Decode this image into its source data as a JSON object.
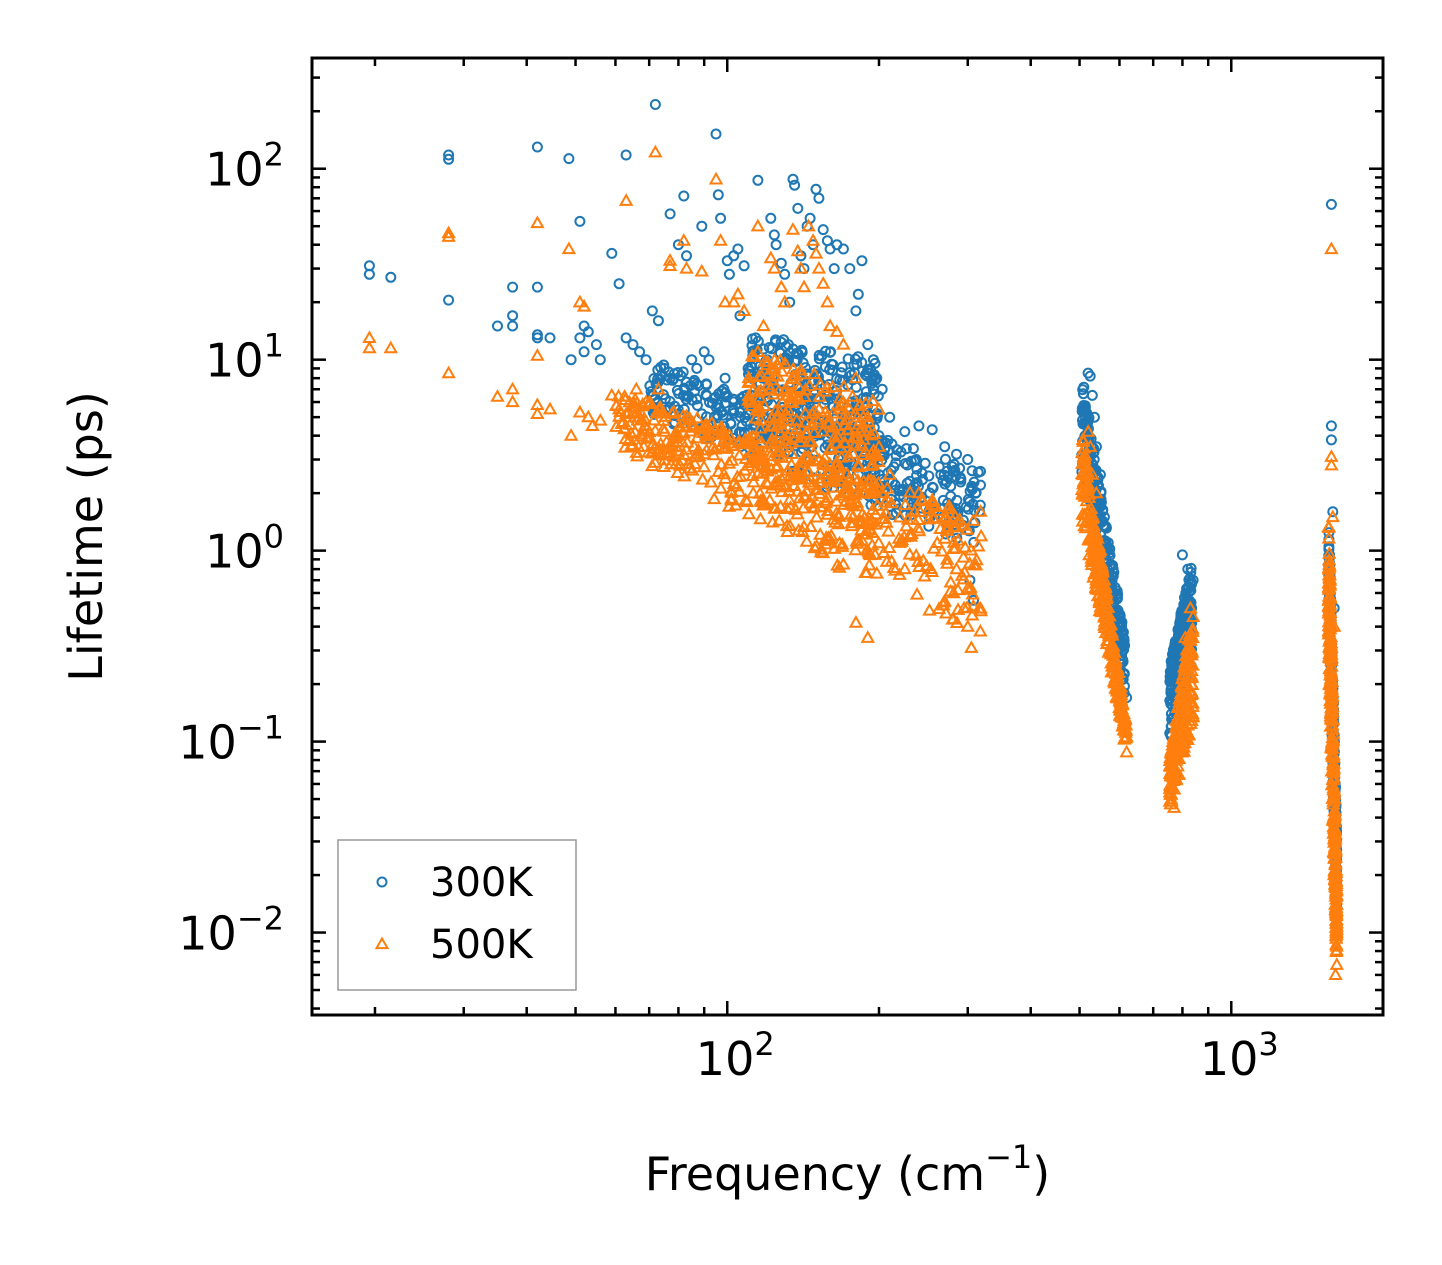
{
  "chart_data": {
    "type": "scatter",
    "title": "",
    "xlabel": "Frequency (cm",
    "xlabel_sup": "−1",
    "xlabel_end": ")",
    "ylabel": "Lifetime (ps)",
    "xscale": "log",
    "yscale": "log",
    "xlim": [
      15,
      2000
    ],
    "ylim": [
      0.0037,
      380
    ],
    "x_ticks": [
      {
        "value": 100,
        "base": "10",
        "exp": "2"
      },
      {
        "value": 1000,
        "base": "10",
        "exp": "3"
      }
    ],
    "y_ticks": [
      {
        "value": 100,
        "base": "10",
        "exp": "2"
      },
      {
        "value": 10,
        "base": "10",
        "exp": "1"
      },
      {
        "value": 1,
        "base": "10",
        "exp": "0"
      },
      {
        "value": 0.1,
        "base": "10",
        "exp": "−1"
      },
      {
        "value": 0.01,
        "base": "10",
        "exp": "−2"
      }
    ],
    "legend_position": "bottom-left",
    "series": [
      {
        "name": "300K",
        "marker": "circle",
        "color": "#1f77b4",
        "points": [
          [
            19.5,
            31
          ],
          [
            19.5,
            28
          ],
          [
            21.5,
            27
          ],
          [
            28,
            118
          ],
          [
            28,
            112
          ],
          [
            28,
            20.5
          ],
          [
            35,
            15
          ],
          [
            37.5,
            24
          ],
          [
            37.5,
            17
          ],
          [
            37.5,
            15
          ],
          [
            42,
            130
          ],
          [
            42,
            24
          ],
          [
            42,
            13.5
          ],
          [
            42,
            13
          ],
          [
            44.5,
            13
          ],
          [
            48.5,
            113
          ],
          [
            49,
            10
          ],
          [
            51,
            53
          ],
          [
            51,
            13
          ],
          [
            52,
            15
          ],
          [
            52,
            11
          ],
          [
            53,
            14
          ],
          [
            55,
            12
          ],
          [
            56,
            10
          ],
          [
            59,
            36
          ],
          [
            61,
            25
          ],
          [
            63,
            118
          ],
          [
            63,
            13
          ],
          [
            65,
            12
          ],
          [
            67,
            11
          ],
          [
            69,
            10
          ],
          [
            72,
            217
          ],
          [
            71,
            18
          ],
          [
            73,
            16
          ],
          [
            75,
            9
          ],
          [
            77,
            58
          ],
          [
            77,
            8
          ],
          [
            80,
            40
          ],
          [
            82,
            72
          ],
          [
            83,
            35
          ],
          [
            85,
            10
          ],
          [
            87,
            9
          ],
          [
            89,
            50
          ],
          [
            90,
            11
          ],
          [
            92,
            10
          ],
          [
            95,
            152
          ],
          [
            96,
            73
          ],
          [
            97,
            55
          ],
          [
            99,
            8
          ],
          [
            100,
            33
          ],
          [
            101,
            28
          ],
          [
            103,
            35
          ],
          [
            105,
            38
          ],
          [
            106,
            17
          ],
          [
            108,
            31
          ],
          [
            110,
            9
          ],
          [
            115,
            87
          ],
          [
            118,
            8
          ],
          [
            120,
            10
          ],
          [
            122,
            55
          ],
          [
            124,
            45
          ],
          [
            125,
            40
          ],
          [
            128,
            32
          ],
          [
            130,
            28
          ],
          [
            133,
            20
          ],
          [
            135,
            88
          ],
          [
            136,
            82
          ],
          [
            138,
            62
          ],
          [
            140,
            35
          ],
          [
            142,
            30
          ],
          [
            144,
            50
          ],
          [
            146,
            55
          ],
          [
            148,
            40
          ],
          [
            150,
            78
          ],
          [
            152,
            70
          ],
          [
            155,
            48
          ],
          [
            158,
            42
          ],
          [
            160,
            38
          ],
          [
            163,
            30
          ],
          [
            165,
            40
          ],
          [
            170,
            38
          ],
          [
            175,
            30
          ],
          [
            180,
            18
          ],
          [
            182,
            22
          ],
          [
            185,
            33
          ],
          [
            190,
            12
          ],
          [
            195,
            10
          ],
          [
            198,
            8
          ],
          [
            203,
            7
          ],
          [
            210,
            5
          ],
          [
            225,
            4.2
          ],
          [
            240,
            4.5
          ],
          [
            255,
            4.3
          ],
          [
            270,
            3.5
          ],
          [
            285,
            3.2
          ],
          [
            300,
            3.0
          ],
          [
            318,
            2.6
          ],
          [
            310,
            1.4
          ],
          [
            303,
            0.7
          ],
          [
            308,
            0.55
          ],
          [
            520,
            8.5
          ],
          [
            525,
            8.2
          ],
          [
            530,
            6.5
          ],
          [
            535,
            5.0
          ],
          [
            540,
            3.5
          ],
          [
            550,
            2.5
          ],
          [
            560,
            1.5
          ],
          [
            580,
            0.7
          ],
          [
            600,
            0.35
          ],
          [
            620,
            0.17
          ],
          [
            760,
            0.12
          ],
          [
            780,
            0.2
          ],
          [
            800,
            0.95
          ],
          [
            820,
            0.8
          ],
          [
            840,
            0.7
          ],
          [
            1580,
            65
          ],
          [
            1580,
            4.5
          ],
          [
            1580,
            3.8
          ],
          [
            1590,
            1.6
          ],
          [
            1600,
            0.5
          ],
          [
            1600,
            0.1
          ],
          [
            1610,
            0.03
          ]
        ],
        "clusters": [
          {
            "x": [
              70,
              320
            ],
            "y_top": [
              10,
              2.6
            ],
            "y_bot": [
              5,
              1.0
            ],
            "n": 460
          },
          {
            "x": [
              110,
              200
            ],
            "y_top": [
              14,
              10
            ],
            "y_bot": [
              4,
              3
            ],
            "n": 260
          },
          {
            "x": [
              505,
              615
            ],
            "y_top": [
              8.5,
              0.35
            ],
            "y_bot": [
              2.5,
              0.17
            ],
            "n": 300
          },
          {
            "x": [
              755,
              835
            ],
            "y_top": [
              0.25,
              0.85
            ],
            "y_bot": [
              0.1,
              0.25
            ],
            "n": 220
          },
          {
            "x": [
              1560,
              1620
            ],
            "y_top": [
              1.6,
              0.03
            ],
            "y_bot": [
              0.4,
              0.012
            ],
            "n": 260
          }
        ]
      },
      {
        "name": "500K",
        "marker": "triangle",
        "color": "#ff7f0e",
        "points": [
          [
            19.5,
            13
          ],
          [
            19.5,
            11.5
          ],
          [
            21.5,
            11.5
          ],
          [
            28,
            46
          ],
          [
            28,
            44
          ],
          [
            28,
            8.5
          ],
          [
            35,
            6.4
          ],
          [
            37.5,
            7
          ],
          [
            37.5,
            6
          ],
          [
            42,
            52
          ],
          [
            42,
            10.5
          ],
          [
            42,
            5.8
          ],
          [
            42,
            5.2
          ],
          [
            44.5,
            5.5
          ],
          [
            48.5,
            38
          ],
          [
            49,
            4
          ],
          [
            51,
            20
          ],
          [
            51,
            5.3
          ],
          [
            52,
            19
          ],
          [
            53,
            5
          ],
          [
            54,
            4.5
          ],
          [
            56,
            4.8
          ],
          [
            59,
            6.5
          ],
          [
            61,
            5.5
          ],
          [
            63,
            68
          ],
          [
            63,
            5.2
          ],
          [
            66,
            7
          ],
          [
            69,
            6
          ],
          [
            72,
            122
          ],
          [
            73,
            7
          ],
          [
            75,
            4.2
          ],
          [
            77,
            33
          ],
          [
            77,
            31
          ],
          [
            80,
            4
          ],
          [
            82,
            42
          ],
          [
            83,
            30
          ],
          [
            86,
            3.5
          ],
          [
            89,
            29
          ],
          [
            90,
            3.2
          ],
          [
            95,
            88
          ],
          [
            97,
            42
          ],
          [
            99,
            20
          ],
          [
            100,
            3.8
          ],
          [
            103,
            20
          ],
          [
            105,
            22
          ],
          [
            108,
            18
          ],
          [
            112,
            3.0
          ],
          [
            115,
            50
          ],
          [
            118,
            15
          ],
          [
            120,
            2.6
          ],
          [
            122,
            34
          ],
          [
            124,
            30
          ],
          [
            128,
            24
          ],
          [
            130,
            20
          ],
          [
            135,
            48
          ],
          [
            138,
            37
          ],
          [
            140,
            30
          ],
          [
            142,
            24
          ],
          [
            145,
            50
          ],
          [
            148,
            42
          ],
          [
            150,
            36
          ],
          [
            152,
            30
          ],
          [
            155,
            25
          ],
          [
            158,
            20
          ],
          [
            160,
            15
          ],
          [
            165,
            14
          ],
          [
            170,
            12
          ],
          [
            180,
            8
          ],
          [
            190,
            5
          ],
          [
            200,
            3.5
          ],
          [
            210,
            2.5
          ],
          [
            220,
            1.1
          ],
          [
            225,
            0.8
          ],
          [
            230,
            1.2
          ],
          [
            240,
            2.0
          ],
          [
            255,
            1.8
          ],
          [
            270,
            1.5
          ],
          [
            285,
            0.8
          ],
          [
            295,
            0.5
          ],
          [
            300,
            0.4
          ],
          [
            305,
            0.31
          ],
          [
            318,
            1.6
          ],
          [
            180,
            0.42
          ],
          [
            190,
            0.35
          ],
          [
            520,
            4.2
          ],
          [
            525,
            3.5
          ],
          [
            530,
            2.5
          ],
          [
            540,
            2.0
          ],
          [
            550,
            1.0
          ],
          [
            560,
            0.7
          ],
          [
            580,
            0.3
          ],
          [
            600,
            0.15
          ],
          [
            620,
            0.088
          ],
          [
            760,
            0.05
          ],
          [
            770,
            0.045
          ],
          [
            790,
            0.12
          ],
          [
            810,
            0.35
          ],
          [
            830,
            0.5
          ],
          [
            840,
            0.45
          ],
          [
            1580,
            38
          ],
          [
            1580,
            3.1
          ],
          [
            1580,
            2.8
          ],
          [
            1590,
            1.5
          ],
          [
            1600,
            0.4
          ],
          [
            1600,
            0.02
          ],
          [
            1610,
            0.006
          ]
        ],
        "clusters": [
          {
            "x": [
              60,
              320
            ],
            "y_top": [
              7,
              1.5
            ],
            "y_bot": [
              3.5,
              0.32
            ],
            "n": 480
          },
          {
            "x": [
              110,
              200
            ],
            "y_top": [
              12,
              6
            ],
            "y_bot": [
              2.5,
              1.0
            ],
            "n": 280
          },
          {
            "x": [
              505,
              620
            ],
            "y_top": [
              4.2,
              0.12
            ],
            "y_bot": [
              1.5,
              0.088
            ],
            "n": 300
          },
          {
            "x": [
              755,
              840
            ],
            "y_top": [
              0.08,
              0.5
            ],
            "y_bot": [
              0.045,
              0.12
            ],
            "n": 220
          },
          {
            "x": [
              1560,
              1620
            ],
            "y_top": [
              1.5,
              0.015
            ],
            "y_bot": [
              0.3,
              0.006
            ],
            "n": 280
          }
        ]
      }
    ]
  }
}
